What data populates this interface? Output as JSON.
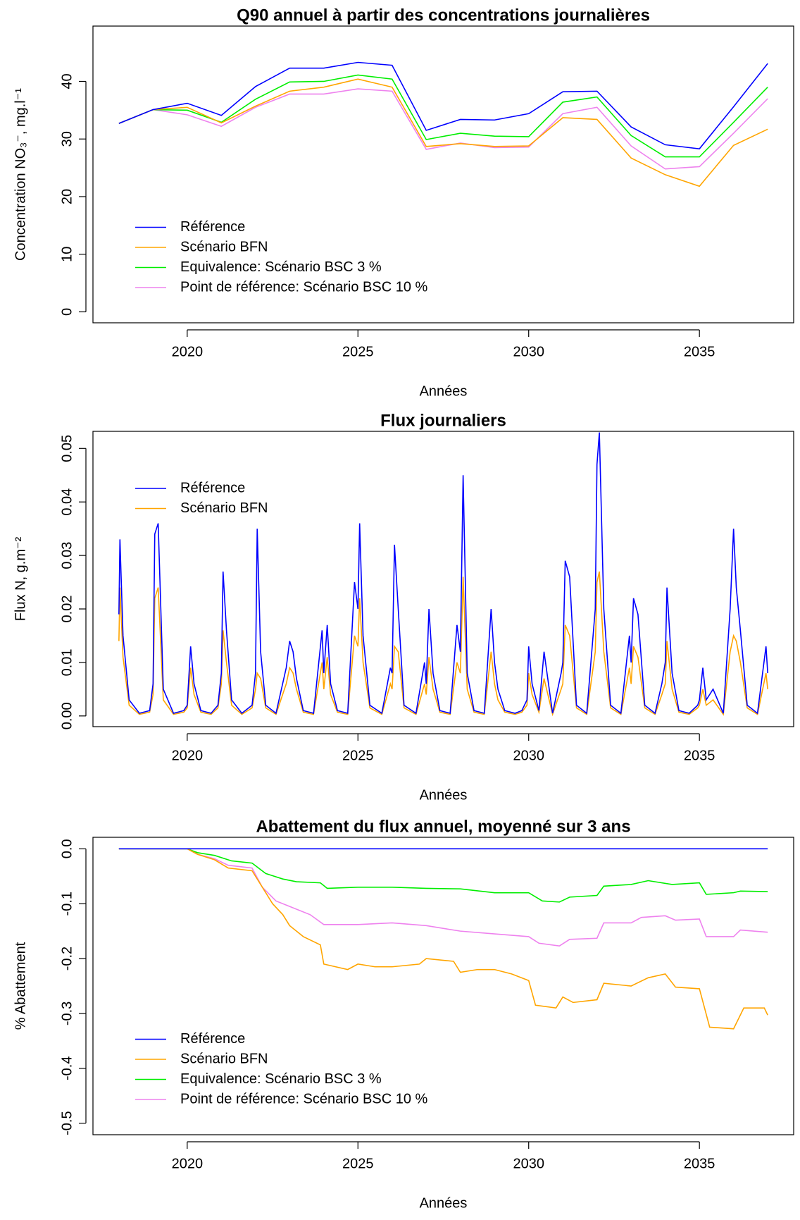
{
  "chart_data": [
    {
      "type": "line",
      "title": "Q90 annuel à partir des concentrations journalières",
      "x_label": "Années",
      "y_label": "Concentration NO₃⁻, mg.l⁻¹",
      "x": [
        2018,
        2019,
        2020,
        2021,
        2022,
        2023,
        2024,
        2025,
        2026,
        2027,
        2028,
        2029,
        2030,
        2031,
        2032,
        2033,
        2034,
        2035,
        2036,
        2037
      ],
      "series": [
        {
          "name": "Référence",
          "color": "#0000ff",
          "values": [
            32.7,
            35.1,
            36.2,
            34.1,
            39.1,
            42.3,
            42.3,
            43.3,
            42.8,
            31.5,
            33.4,
            33.3,
            34.4,
            38.2,
            38.3,
            32.1,
            29.0,
            28.3,
            35.6,
            43.1
          ]
        },
        {
          "name": "Scénario BFN",
          "color": "#ffa500",
          "values": [
            32.7,
            35.1,
            35.5,
            32.8,
            35.7,
            38.3,
            39.0,
            40.4,
            39.0,
            28.7,
            29.2,
            28.7,
            28.8,
            33.7,
            33.4,
            26.7,
            23.8,
            21.8,
            28.9,
            31.7
          ]
        },
        {
          "name": "Equivalence: Scénario BSC 3  %",
          "color": "#00ee00",
          "values": [
            32.7,
            35.1,
            35.0,
            32.9,
            36.9,
            39.9,
            40.0,
            41.1,
            40.4,
            29.9,
            31.0,
            30.5,
            30.4,
            36.4,
            37.3,
            30.6,
            26.9,
            26.9,
            32.9,
            39.0
          ]
        },
        {
          "name": "Point de référence: Scénario BSC 10 %",
          "color": "#ee82ee",
          "values": [
            32.7,
            35.1,
            34.2,
            32.2,
            35.5,
            37.8,
            37.8,
            38.7,
            38.3,
            28.2,
            29.3,
            28.5,
            28.6,
            34.4,
            35.5,
            28.8,
            24.8,
            25.2,
            31.0,
            37.0
          ]
        }
      ],
      "xlim": [
        2017.24,
        2037.76
      ],
      "xticks": [
        2020,
        2025,
        2030,
        2035
      ],
      "ylim": [
        -1.9,
        49.6
      ],
      "yticks": [
        0,
        10,
        20,
        30,
        40
      ],
      "legend": "bottomleft"
    },
    {
      "type": "line",
      "title": "Flux journaliers",
      "x_label": "Années",
      "y_label": "Flux N, g.m⁻²",
      "x": [
        2018,
        2018.03,
        2018.12,
        2018.3,
        2018.6,
        2018.9,
        2019,
        2019.05,
        2019.15,
        2019.3,
        2019.6,
        2019.9,
        2020,
        2020.1,
        2020.2,
        2020.4,
        2020.7,
        2020.9,
        2021,
        2021.05,
        2021.15,
        2021.3,
        2021.6,
        2021.9,
        2022,
        2022.05,
        2022.15,
        2022.3,
        2022.6,
        2022.9,
        2023,
        2023.1,
        2023.2,
        2023.4,
        2023.7,
        2023.95,
        2024,
        2024.1,
        2024.2,
        2024.4,
        2024.7,
        2024.9,
        2025,
        2025.05,
        2025.15,
        2025.35,
        2025.7,
        2025.95,
        2026,
        2026.07,
        2026.18,
        2026.35,
        2026.7,
        2026.95,
        2027,
        2027.08,
        2027.2,
        2027.4,
        2027.7,
        2027.9,
        2028,
        2028.08,
        2028.2,
        2028.4,
        2028.7,
        2028.9,
        2029,
        2029.1,
        2029.3,
        2029.6,
        2029.8,
        2029.95,
        2030,
        2030.1,
        2030.3,
        2030.45,
        2030.7,
        2030.95,
        2031,
        2031.07,
        2031.2,
        2031.4,
        2031.7,
        2031.95,
        2032,
        2032.07,
        2032.2,
        2032.4,
        2032.7,
        2032.95,
        2033,
        2033.07,
        2033.2,
        2033.4,
        2033.7,
        2033.9,
        2034,
        2034.05,
        2034.2,
        2034.4,
        2034.7,
        2034.95,
        2035,
        2035.1,
        2035.2,
        2035.4,
        2035.7,
        2035.9,
        2036,
        2036.08,
        2036.2,
        2036.4,
        2036.7,
        2036.95,
        2037
      ],
      "series": [
        {
          "name": "Référence",
          "color": "#0000ff",
          "values": [
            0.019,
            0.033,
            0.015,
            0.003,
            0.0005,
            0.001,
            0.006,
            0.034,
            0.036,
            0.005,
            0.0005,
            0.001,
            0.002,
            0.013,
            0.006,
            0.001,
            0.0005,
            0.002,
            0.008,
            0.027,
            0.016,
            0.003,
            0.0005,
            0.002,
            0.008,
            0.035,
            0.012,
            0.002,
            0.0005,
            0.009,
            0.014,
            0.012,
            0.007,
            0.001,
            0.0005,
            0.016,
            0.008,
            0.017,
            0.006,
            0.001,
            0.0005,
            0.025,
            0.02,
            0.036,
            0.015,
            0.002,
            0.0005,
            0.009,
            0.008,
            0.032,
            0.02,
            0.002,
            0.0005,
            0.01,
            0.006,
            0.02,
            0.008,
            0.001,
            0.0005,
            0.017,
            0.012,
            0.045,
            0.008,
            0.001,
            0.0005,
            0.02,
            0.01,
            0.005,
            0.001,
            0.0005,
            0.001,
            0.003,
            0.013,
            0.006,
            0.001,
            0.012,
            0.0005,
            0.008,
            0.01,
            0.029,
            0.026,
            0.002,
            0.0005,
            0.02,
            0.047,
            0.053,
            0.02,
            0.002,
            0.0005,
            0.015,
            0.01,
            0.022,
            0.019,
            0.002,
            0.0005,
            0.006,
            0.01,
            0.024,
            0.008,
            0.001,
            0.0005,
            0.002,
            0.003,
            0.009,
            0.003,
            0.005,
            0.0005,
            0.02,
            0.035,
            0.024,
            0.016,
            0.002,
            0.0005,
            0.013,
            0.008
          ]
        },
        {
          "name": "Scénario BFN",
          "color": "#ffa500",
          "values": [
            0.014,
            0.024,
            0.011,
            0.002,
            0.0003,
            0.0007,
            0.004,
            0.022,
            0.024,
            0.003,
            0.0003,
            0.0007,
            0.0015,
            0.009,
            0.004,
            0.0007,
            0.0003,
            0.0015,
            0.006,
            0.016,
            0.01,
            0.002,
            0.0003,
            0.0015,
            0.005,
            0.008,
            0.007,
            0.0015,
            0.0003,
            0.006,
            0.009,
            0.008,
            0.005,
            0.0007,
            0.0003,
            0.01,
            0.005,
            0.011,
            0.004,
            0.0007,
            0.0003,
            0.015,
            0.013,
            0.022,
            0.01,
            0.0015,
            0.0003,
            0.006,
            0.005,
            0.013,
            0.012,
            0.0015,
            0.0003,
            0.006,
            0.004,
            0.011,
            0.005,
            0.0007,
            0.0003,
            0.01,
            0.008,
            0.026,
            0.005,
            0.0007,
            0.0003,
            0.012,
            0.006,
            0.003,
            0.0007,
            0.0003,
            0.0007,
            0.002,
            0.008,
            0.004,
            0.0007,
            0.007,
            0.0003,
            0.005,
            0.006,
            0.017,
            0.015,
            0.0015,
            0.0003,
            0.012,
            0.025,
            0.027,
            0.012,
            0.0015,
            0.0003,
            0.009,
            0.006,
            0.013,
            0.011,
            0.0015,
            0.0003,
            0.004,
            0.006,
            0.014,
            0.005,
            0.0007,
            0.0003,
            0.0015,
            0.002,
            0.005,
            0.002,
            0.003,
            0.0003,
            0.012,
            0.015,
            0.014,
            0.01,
            0.0015,
            0.0003,
            0.008,
            0.005
          ]
        }
      ],
      "xlim": [
        2017.24,
        2037.76
      ],
      "xticks": [
        2020,
        2025,
        2030,
        2035
      ],
      "ylim": [
        -0.002,
        0.0532
      ],
      "yticks": [
        {
          "value": 0,
          "label": "0.00"
        },
        0.01,
        0.02,
        0.03,
        0.04,
        0.05
      ],
      "legend": "topleft"
    },
    {
      "type": "line",
      "title": "Abattement du flux annuel, moyenné sur 3 ans",
      "x_label": "Années",
      "y_label": "% Abattement",
      "series": [
        {
          "name": "Référence",
          "color": "#0000ff",
          "x": [
            2018,
            2037
          ],
          "values": [
            0,
            0
          ]
        },
        {
          "name": "Scénario BFN",
          "color": "#ffa500",
          "x": [
            2018,
            2020,
            2020.3,
            2020.8,
            2021.2,
            2021.9,
            2022.2,
            2022.5,
            2022.8,
            2023,
            2023.4,
            2023.9,
            2024,
            2024.7,
            2025,
            2025.5,
            2026,
            2026.8,
            2027,
            2027.8,
            2028,
            2028.5,
            2029,
            2029.5,
            2030,
            2030.2,
            2030.8,
            2031,
            2031.3,
            2032,
            2032.2,
            2033,
            2033.5,
            2034,
            2034.3,
            2035,
            2035.3,
            2036,
            2036.3,
            2036.9,
            2037
          ],
          "values": [
            0,
            0,
            -0.01,
            -0.02,
            -0.035,
            -0.04,
            -0.07,
            -0.1,
            -0.12,
            -0.14,
            -0.16,
            -0.175,
            -0.21,
            -0.22,
            -0.21,
            -0.215,
            -0.215,
            -0.21,
            -0.2,
            -0.205,
            -0.225,
            -0.22,
            -0.22,
            -0.228,
            -0.24,
            -0.285,
            -0.29,
            -0.27,
            -0.28,
            -0.275,
            -0.245,
            -0.25,
            -0.235,
            -0.228,
            -0.252,
            -0.255,
            -0.325,
            -0.328,
            -0.29,
            -0.29,
            -0.303
          ]
        },
        {
          "name": "Equivalence: Scénario BSC 3  %",
          "color": "#00ee00",
          "x": [
            2018,
            2020,
            2020.3,
            2020.8,
            2021.3,
            2021.9,
            2022.3,
            2022.8,
            2023.2,
            2023.9,
            2024.1,
            2025,
            2026,
            2027,
            2028,
            2029,
            2030,
            2030.4,
            2030.9,
            2031.2,
            2032,
            2032.2,
            2033,
            2033.5,
            2034.2,
            2035,
            2035.2,
            2036,
            2036.2,
            2037
          ],
          "values": [
            0,
            0,
            -0.007,
            -0.012,
            -0.022,
            -0.026,
            -0.045,
            -0.055,
            -0.06,
            -0.062,
            -0.072,
            -0.07,
            -0.07,
            -0.072,
            -0.073,
            -0.08,
            -0.08,
            -0.095,
            -0.097,
            -0.088,
            -0.085,
            -0.068,
            -0.065,
            -0.058,
            -0.065,
            -0.062,
            -0.083,
            -0.08,
            -0.077,
            -0.078
          ]
        },
        {
          "name": "Point de référence: Scénario BSC 10 %",
          "color": "#ee82ee",
          "x": [
            2018,
            2020,
            2020.3,
            2020.8,
            2021.2,
            2021.9,
            2022.2,
            2022.6,
            2023,
            2023.6,
            2024,
            2025,
            2026,
            2027,
            2028,
            2029,
            2030,
            2030.3,
            2030.9,
            2031.2,
            2032,
            2032.2,
            2033,
            2033.3,
            2034,
            2034.3,
            2035,
            2035.2,
            2036,
            2036.2,
            2037
          ],
          "values": [
            0,
            0,
            -0.01,
            -0.018,
            -0.03,
            -0.035,
            -0.07,
            -0.095,
            -0.105,
            -0.12,
            -0.138,
            -0.138,
            -0.135,
            -0.14,
            -0.15,
            -0.155,
            -0.16,
            -0.172,
            -0.177,
            -0.165,
            -0.163,
            -0.135,
            -0.135,
            -0.125,
            -0.122,
            -0.13,
            -0.128,
            -0.16,
            -0.16,
            -0.148,
            -0.152
          ]
        }
      ],
      "xlim": [
        2017.24,
        2037.76
      ],
      "xticks": [
        2020,
        2025,
        2030,
        2035
      ],
      "ylim": [
        -0.521,
        0.021
      ],
      "yticks": [
        {
          "value": 0,
          "label": "0.0"
        },
        -0.1,
        -0.2,
        -0.3,
        -0.4,
        -0.5
      ],
      "legend": "bottomleft"
    }
  ]
}
